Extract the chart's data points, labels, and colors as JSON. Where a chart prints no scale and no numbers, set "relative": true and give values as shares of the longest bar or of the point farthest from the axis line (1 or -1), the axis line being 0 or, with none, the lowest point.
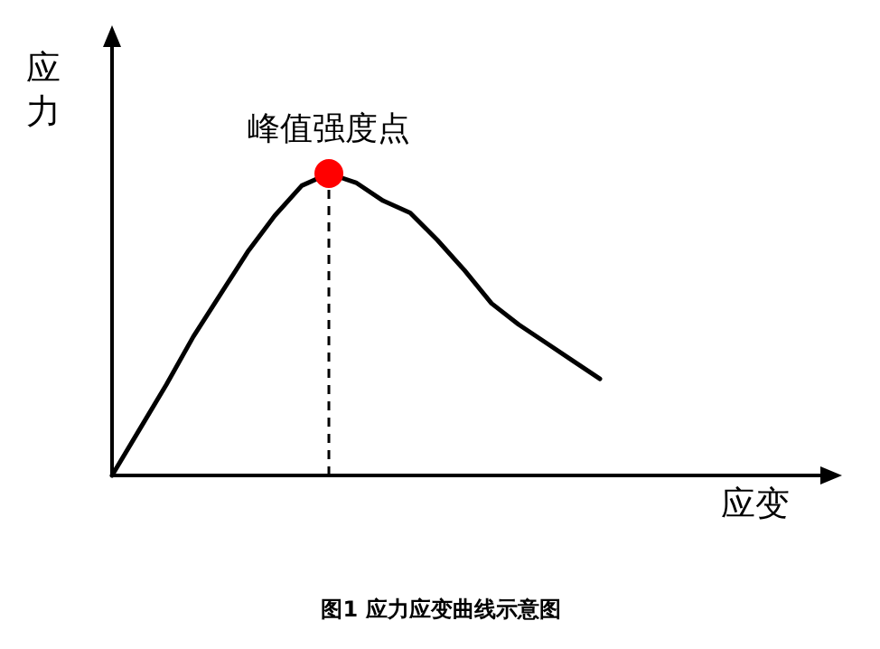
{
  "chart_data": {
    "type": "line",
    "relative": true,
    "xlabel": "应变",
    "ylabel": "应力",
    "categories": [
      null,
      null,
      null,
      null,
      null,
      null,
      null,
      null,
      null,
      null,
      null,
      null,
      null,
      null,
      null,
      null,
      null,
      null,
      null
    ],
    "series": [
      {
        "color": "#000000",
        "values": [
          0,
          0.15,
          0.3,
          0.46,
          0.6,
          0.74,
          0.86,
          0.96,
          1,
          0.97,
          0.91,
          0.87,
          0.78,
          0.68,
          0.57,
          0.5,
          0.44,
          0.38,
          0.32
        ]
      }
    ],
    "annotations": [
      {
        "text": "峰值强度点",
        "y": 1
      },
      "图1 应力应变曲线示意图"
    ]
  }
}
